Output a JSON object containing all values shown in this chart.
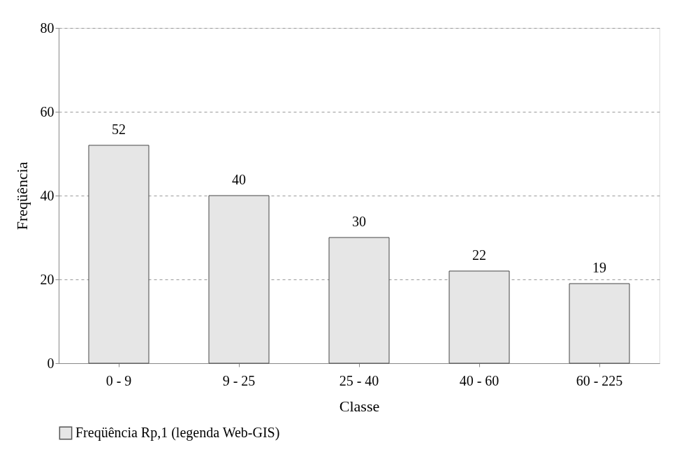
{
  "chart_data": {
    "type": "bar",
    "xlabel": "Classe",
    "ylabel": "Freqüência",
    "categories": [
      "0 - 9",
      "9 - 25",
      "25 - 40",
      "40 - 60",
      "60 - 225"
    ],
    "series": [
      {
        "name": "Freqüência Rp,1 (legenda Web-GIS)",
        "color": "#e6e6e6",
        "values": [
          52,
          40,
          30,
          22,
          19
        ]
      }
    ],
    "ylim": [
      0,
      80
    ],
    "yticks": [
      0,
      20,
      40,
      60,
      80
    ],
    "grid": "y",
    "legend": "bottom",
    "data_labels": true
  }
}
